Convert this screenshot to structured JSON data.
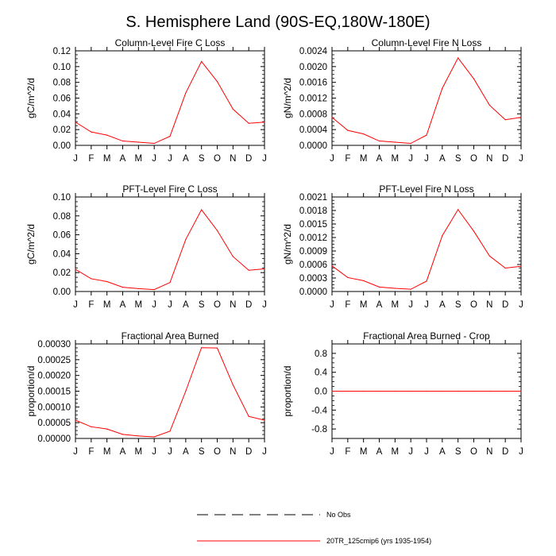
{
  "figure": {
    "title": "S. Hemisphere Land (90S-EQ,180W-180E)"
  },
  "legend": {
    "entries": [
      {
        "label": "No Obs",
        "style": "dashed",
        "color": "#000000"
      },
      {
        "label": "20TR_125cmip6 (yrs 1935-1954)",
        "style": "solid",
        "color": "#ff0000"
      }
    ]
  },
  "chart_data": [
    {
      "type": "line",
      "title": "Column-Level Fire C Loss",
      "ylabel": "gC/m^2/d",
      "categories": [
        "J",
        "F",
        "M",
        "A",
        "M",
        "J",
        "J",
        "A",
        "S",
        "O",
        "N",
        "D",
        "J"
      ],
      "ylim": [
        0,
        0.12
      ],
      "yticks": [
        "0.00",
        "0.02",
        "0.04",
        "0.06",
        "0.08",
        "0.10",
        "0.12"
      ],
      "series": [
        {
          "name": "20TR_125cmip6 (yrs 1935-1954)",
          "color": "#ff0000",
          "values": [
            0.0295,
            0.017,
            0.013,
            0.0055,
            0.004,
            0.0025,
            0.0115,
            0.0665,
            0.1065,
            0.081,
            0.046,
            0.028,
            0.0295
          ]
        }
      ]
    },
    {
      "type": "line",
      "title": "Column-Level Fire N Loss",
      "ylabel": "gN/m^2/d",
      "categories": [
        "J",
        "F",
        "M",
        "A",
        "M",
        "J",
        "J",
        "A",
        "S",
        "O",
        "N",
        "D",
        "J"
      ],
      "ylim": [
        0,
        0.0024
      ],
      "yticks": [
        "0.0000",
        "0.0004",
        "0.0008",
        "0.0012",
        "0.0016",
        "0.0020",
        "0.0024"
      ],
      "series": [
        {
          "name": "20TR_125cmip6 (yrs 1935-1954)",
          "color": "#ff0000",
          "values": [
            0.00071,
            0.00038,
            0.00029,
            0.00011,
            8e-05,
            5e-05,
            0.00026,
            0.00145,
            0.00222,
            0.00169,
            0.00102,
            0.00065,
            0.00071
          ]
        }
      ]
    },
    {
      "type": "line",
      "title": "PFT-Level Fire C Loss",
      "ylabel": "gC/m^2/d",
      "categories": [
        "J",
        "F",
        "M",
        "A",
        "M",
        "J",
        "J",
        "A",
        "S",
        "O",
        "N",
        "D",
        "J"
      ],
      "ylim": [
        0,
        0.1
      ],
      "yticks": [
        "0.00",
        "0.02",
        "0.04",
        "0.06",
        "0.08",
        "0.10"
      ],
      "series": [
        {
          "name": "20TR_125cmip6 (yrs 1935-1954)",
          "color": "#ff0000",
          "values": [
            0.0235,
            0.0135,
            0.0105,
            0.0045,
            0.003,
            0.002,
            0.0095,
            0.055,
            0.0865,
            0.0645,
            0.037,
            0.0225,
            0.024
          ]
        }
      ]
    },
    {
      "type": "line",
      "title": "PFT-Level Fire N Loss",
      "ylabel": "gN/m^2/d",
      "categories": [
        "J",
        "F",
        "M",
        "A",
        "M",
        "J",
        "J",
        "A",
        "S",
        "O",
        "N",
        "D",
        "J"
      ],
      "ylim": [
        0,
        0.0021
      ],
      "yticks": [
        "0.0000",
        "0.0003",
        "0.0006",
        "0.0009",
        "0.0012",
        "0.0015",
        "0.0018",
        "0.0021"
      ],
      "series": [
        {
          "name": "20TR_125cmip6 (yrs 1935-1954)",
          "color": "#ff0000",
          "values": [
            0.00057,
            0.00031,
            0.00024,
            0.0001,
            7e-05,
            5e-05,
            0.00023,
            0.00124,
            0.00182,
            0.00134,
            0.00079,
            0.00052,
            0.00056
          ]
        }
      ]
    },
    {
      "type": "line",
      "title": "Fractional Area Burned",
      "ylabel": "proportion/d",
      "categories": [
        "J",
        "F",
        "M",
        "A",
        "M",
        "J",
        "J",
        "A",
        "S",
        "O",
        "N",
        "D",
        "J"
      ],
      "ylim": [
        0,
        0.0003
      ],
      "yticks": [
        "0.00000",
        "0.00005",
        "0.00010",
        "0.00015",
        "0.00020",
        "0.00025",
        "0.00030"
      ],
      "series": [
        {
          "name": "20TR_125cmip6 (yrs 1935-1954)",
          "color": "#ff0000",
          "values": [
            5.8e-05,
            3.7e-05,
            3e-05,
            1.3e-05,
            8e-06,
            5e-06,
            2.3e-05,
            0.00015,
            0.000288,
            0.000287,
            0.00017,
            7e-05,
            5.8e-05
          ]
        }
      ]
    },
    {
      "type": "line",
      "title": "Fractional Area Burned - Crop",
      "ylabel": "proportion/d",
      "categories": [
        "J",
        "F",
        "M",
        "A",
        "M",
        "J",
        "J",
        "A",
        "S",
        "O",
        "N",
        "D",
        "J"
      ],
      "ylim": [
        -1.0,
        1.0
      ],
      "yticks": [
        "-0.8",
        "-0.4",
        "0.0",
        "0.4",
        "0.8"
      ],
      "ytick_values": [
        -0.8,
        -0.4,
        0.0,
        0.4,
        0.8
      ],
      "series": [
        {
          "name": "20TR_125cmip6 (yrs 1935-1954)",
          "color": "#ff0000",
          "values": [
            0,
            0,
            0,
            0,
            0,
            0,
            0,
            0,
            0,
            0,
            0,
            0,
            0
          ]
        }
      ]
    }
  ]
}
